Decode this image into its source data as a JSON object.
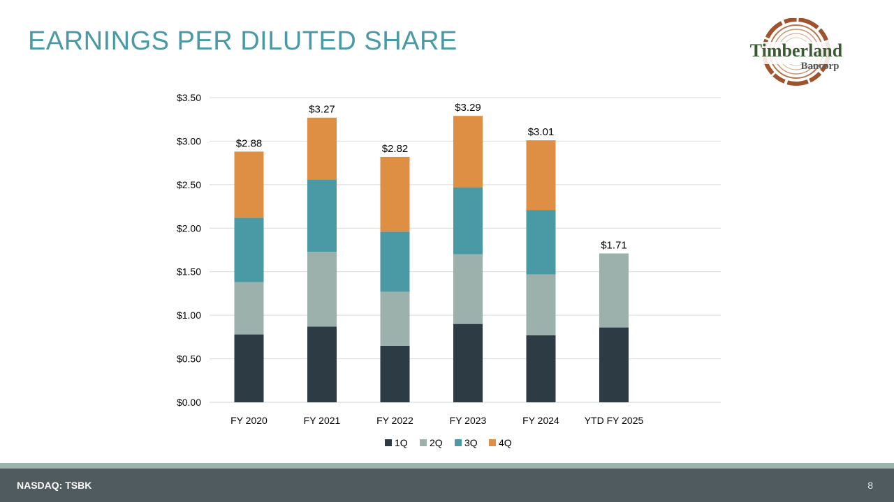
{
  "slide": {
    "title": "EARNINGS PER DILUTED SHARE",
    "footer_left": "NASDAQ: TSBK",
    "page_number": "8"
  },
  "logo": {
    "name_line1": "Timberland",
    "name_line2": "Bancorp",
    "ring_color": "#a0522d",
    "text_color": "#3b5a34"
  },
  "chart_data": {
    "type": "bar",
    "stacked": true,
    "categories": [
      "FY 2020",
      "FY 2021",
      "FY 2022",
      "FY 2023",
      "FY 2024",
      "YTD FY 2025"
    ],
    "series": [
      {
        "name": "1Q",
        "color": "#2d3b45",
        "values": [
          0.78,
          0.87,
          0.65,
          0.9,
          0.77,
          0.86
        ]
      },
      {
        "name": "2Q",
        "color": "#9db1ac",
        "values": [
          0.6,
          0.86,
          0.62,
          0.8,
          0.7,
          0.85
        ]
      },
      {
        "name": "3Q",
        "color": "#4a9aa5",
        "values": [
          0.74,
          0.83,
          0.69,
          0.77,
          0.74,
          0
        ]
      },
      {
        "name": "4Q",
        "color": "#df8f44",
        "values": [
          0.76,
          0.71,
          0.86,
          0.82,
          0.8,
          0
        ]
      }
    ],
    "totals": [
      2.88,
      3.27,
      2.82,
      3.29,
      3.01,
      1.71
    ],
    "total_labels": [
      "$2.88",
      "$3.27",
      "$2.82",
      "$3.29",
      "$3.01",
      "$1.71"
    ],
    "ylim": [
      0,
      3.5
    ],
    "yticks": [
      0,
      0.5,
      1.0,
      1.5,
      2.0,
      2.5,
      3.0,
      3.5
    ],
    "ytick_labels": [
      "$0.00",
      "$0.50",
      "$1.00",
      "$1.50",
      "$2.00",
      "$2.50",
      "$3.00",
      "$3.50"
    ],
    "grid": true,
    "legend_position": "bottom"
  }
}
